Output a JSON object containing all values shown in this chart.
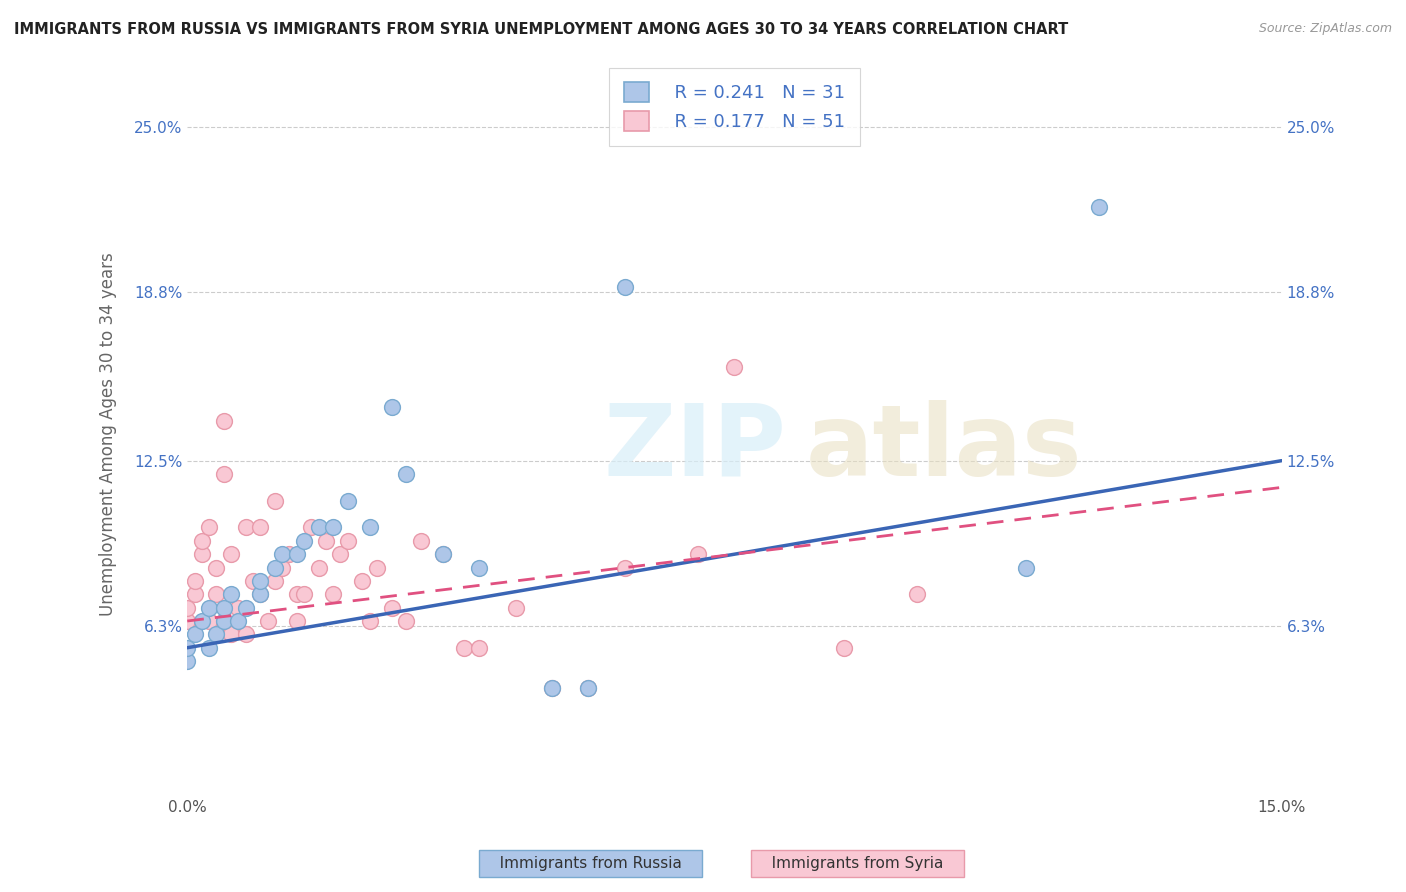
{
  "title": "IMMIGRANTS FROM RUSSIA VS IMMIGRANTS FROM SYRIA UNEMPLOYMENT AMONG AGES 30 TO 34 YEARS CORRELATION CHART",
  "source": "Source: ZipAtlas.com",
  "ylabel": "Unemployment Among Ages 30 to 34 years",
  "xlim": [
    0.0,
    0.15
  ],
  "ylim": [
    0.0,
    0.27
  ],
  "yticks": [
    0.063,
    0.125,
    0.188,
    0.25
  ],
  "ytick_labels": [
    "6.3%",
    "12.5%",
    "18.8%",
    "25.0%"
  ],
  "xtick_labels_left": "0.0%",
  "xtick_labels_right": "15.0%",
  "russia_dot_color": "#aec6e8",
  "russia_edge_color": "#7aaad0",
  "syria_dot_color": "#f9c8d4",
  "syria_edge_color": "#e89aaa",
  "line_russia_color": "#3a65b5",
  "line_syria_color": "#e05080",
  "line_russia_style": "solid",
  "line_syria_style": "dashed",
  "R_russia": 0.241,
  "N_russia": 31,
  "R_syria": 0.177,
  "N_syria": 51,
  "russia_scatter_x": [
    0.0,
    0.0,
    0.001,
    0.002,
    0.003,
    0.003,
    0.004,
    0.005,
    0.005,
    0.006,
    0.007,
    0.008,
    0.01,
    0.01,
    0.012,
    0.013,
    0.015,
    0.016,
    0.018,
    0.02,
    0.022,
    0.025,
    0.028,
    0.03,
    0.035,
    0.04,
    0.05,
    0.055,
    0.06,
    0.115,
    0.125
  ],
  "russia_scatter_y": [
    0.05,
    0.055,
    0.06,
    0.065,
    0.055,
    0.07,
    0.06,
    0.065,
    0.07,
    0.075,
    0.065,
    0.07,
    0.075,
    0.08,
    0.085,
    0.09,
    0.09,
    0.095,
    0.1,
    0.1,
    0.11,
    0.1,
    0.145,
    0.12,
    0.09,
    0.085,
    0.04,
    0.04,
    0.19,
    0.085,
    0.22
  ],
  "syria_scatter_x": [
    0.0,
    0.0,
    0.001,
    0.001,
    0.002,
    0.002,
    0.003,
    0.003,
    0.004,
    0.004,
    0.005,
    0.005,
    0.006,
    0.006,
    0.007,
    0.008,
    0.008,
    0.009,
    0.01,
    0.01,
    0.011,
    0.012,
    0.012,
    0.013,
    0.014,
    0.015,
    0.015,
    0.016,
    0.017,
    0.018,
    0.019,
    0.02,
    0.021,
    0.022,
    0.024,
    0.025,
    0.026,
    0.028,
    0.03,
    0.032,
    0.035,
    0.038,
    0.04,
    0.045,
    0.05,
    0.055,
    0.06,
    0.07,
    0.075,
    0.09,
    0.1
  ],
  "syria_scatter_y": [
    0.065,
    0.07,
    0.075,
    0.08,
    0.09,
    0.095,
    0.065,
    0.1,
    0.075,
    0.085,
    0.12,
    0.14,
    0.06,
    0.09,
    0.07,
    0.1,
    0.06,
    0.08,
    0.075,
    0.1,
    0.065,
    0.08,
    0.11,
    0.085,
    0.09,
    0.075,
    0.065,
    0.075,
    0.1,
    0.085,
    0.095,
    0.075,
    0.09,
    0.095,
    0.08,
    0.065,
    0.085,
    0.07,
    0.065,
    0.095,
    0.09,
    0.055,
    0.055,
    0.07,
    0.04,
    0.04,
    0.085,
    0.09,
    0.16,
    0.055,
    0.075
  ]
}
